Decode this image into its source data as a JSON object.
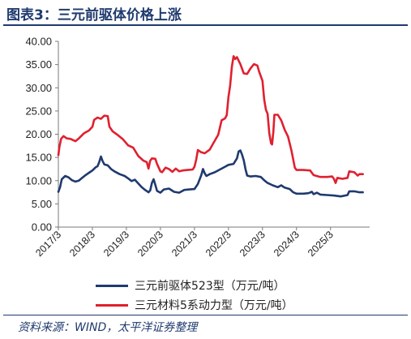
{
  "header": {
    "title": "图表3：三元前驱体价格上涨"
  },
  "source": "资料来源：WIND，太平洋证券整理",
  "colors": {
    "title": "#1f3a6e",
    "series_blue": "#1f3a6e",
    "series_red": "#e0202f",
    "axis": "#7a7a7a"
  },
  "chart_data": {
    "type": "line",
    "title": "",
    "xlabel": "",
    "ylabel": "",
    "ylim": [
      0,
      40
    ],
    "yticks": [
      "0.00",
      "5.00",
      "10.00",
      "15.00",
      "20.00",
      "25.00",
      "30.00",
      "35.00",
      "40.00"
    ],
    "xticks": [
      "2017/3",
      "2018/3",
      "2019/3",
      "2020/3",
      "2021/3",
      "2022/3",
      "2023/3",
      "2024/3",
      "2025/3"
    ],
    "grid": false,
    "legend_position": "bottom",
    "series": [
      {
        "name": "三元前驱体523型（万元/吨）",
        "color": "#1f3a6e",
        "points": [
          [
            2017.0,
            7.6
          ],
          [
            2017.05,
            8.6
          ],
          [
            2017.1,
            10.3
          ],
          [
            2017.2,
            11.0
          ],
          [
            2017.3,
            10.7
          ],
          [
            2017.4,
            10.1
          ],
          [
            2017.5,
            9.8
          ],
          [
            2017.6,
            10.0
          ],
          [
            2017.7,
            10.6
          ],
          [
            2017.8,
            11.2
          ],
          [
            2017.9,
            11.7
          ],
          [
            2018.0,
            12.2
          ],
          [
            2018.1,
            12.9
          ],
          [
            2018.15,
            13.1
          ],
          [
            2018.2,
            14.0
          ],
          [
            2018.25,
            15.2
          ],
          [
            2018.3,
            14.2
          ],
          [
            2018.35,
            13.5
          ],
          [
            2018.45,
            13.3
          ],
          [
            2018.55,
            12.5
          ],
          [
            2018.65,
            12.0
          ],
          [
            2018.8,
            11.4
          ],
          [
            2018.95,
            11.0
          ],
          [
            2019.05,
            10.5
          ],
          [
            2019.15,
            9.9
          ],
          [
            2019.25,
            10.2
          ],
          [
            2019.35,
            9.4
          ],
          [
            2019.45,
            8.6
          ],
          [
            2019.55,
            8.0
          ],
          [
            2019.65,
            7.5
          ],
          [
            2019.7,
            7.9
          ],
          [
            2019.75,
            9.5
          ],
          [
            2019.8,
            10.3
          ],
          [
            2019.85,
            9.1
          ],
          [
            2019.9,
            7.8
          ],
          [
            2020.0,
            7.4
          ],
          [
            2020.1,
            8.1
          ],
          [
            2020.25,
            8.3
          ],
          [
            2020.4,
            7.6
          ],
          [
            2020.55,
            7.4
          ],
          [
            2020.7,
            8.0
          ],
          [
            2020.85,
            8.1
          ],
          [
            2021.0,
            8.2
          ],
          [
            2021.1,
            9.3
          ],
          [
            2021.2,
            11.2
          ],
          [
            2021.25,
            12.5
          ],
          [
            2021.3,
            11.6
          ],
          [
            2021.35,
            11.0
          ],
          [
            2021.45,
            11.4
          ],
          [
            2021.6,
            11.8
          ],
          [
            2021.75,
            12.4
          ],
          [
            2021.9,
            13.0
          ],
          [
            2022.0,
            13.4
          ],
          [
            2022.15,
            13.6
          ],
          [
            2022.25,
            14.8
          ],
          [
            2022.3,
            16.3
          ],
          [
            2022.35,
            16.5
          ],
          [
            2022.4,
            15.6
          ],
          [
            2022.45,
            14.4
          ],
          [
            2022.5,
            12.5
          ],
          [
            2022.55,
            11.1
          ],
          [
            2022.65,
            10.9
          ],
          [
            2022.8,
            11.0
          ],
          [
            2022.95,
            10.8
          ],
          [
            2023.05,
            10.1
          ],
          [
            2023.15,
            9.5
          ],
          [
            2023.3,
            9.0
          ],
          [
            2023.45,
            8.6
          ],
          [
            2023.55,
            9.0
          ],
          [
            2023.65,
            8.5
          ],
          [
            2023.8,
            8.2
          ],
          [
            2023.9,
            7.5
          ],
          [
            2024.0,
            7.2
          ],
          [
            2024.2,
            7.2
          ],
          [
            2024.35,
            7.3
          ],
          [
            2024.45,
            7.6
          ],
          [
            2024.5,
            7.1
          ],
          [
            2024.6,
            7.4
          ],
          [
            2024.7,
            7.0
          ],
          [
            2024.9,
            6.9
          ],
          [
            2025.1,
            6.8
          ],
          [
            2025.3,
            6.6
          ],
          [
            2025.5,
            6.9
          ],
          [
            2025.55,
            7.7
          ],
          [
            2025.7,
            7.7
          ],
          [
            2025.85,
            7.5
          ],
          [
            2025.95,
            7.5
          ]
        ]
      },
      {
        "name": "三元材料5系动力型（万元/吨）",
        "color": "#e0202f",
        "points": [
          [
            2017.0,
            15.5
          ],
          [
            2017.03,
            17.3
          ],
          [
            2017.08,
            19.0
          ],
          [
            2017.15,
            19.6
          ],
          [
            2017.25,
            19.1
          ],
          [
            2017.35,
            19.0
          ],
          [
            2017.5,
            18.5
          ],
          [
            2017.6,
            19.1
          ],
          [
            2017.75,
            20.2
          ],
          [
            2017.9,
            20.8
          ],
          [
            2018.0,
            21.6
          ],
          [
            2018.05,
            23.1
          ],
          [
            2018.15,
            23.6
          ],
          [
            2018.25,
            23.3
          ],
          [
            2018.35,
            24.0
          ],
          [
            2018.45,
            23.9
          ],
          [
            2018.5,
            21.6
          ],
          [
            2018.6,
            20.6
          ],
          [
            2018.75,
            19.8
          ],
          [
            2018.9,
            18.9
          ],
          [
            2019.05,
            17.6
          ],
          [
            2019.2,
            17.1
          ],
          [
            2019.35,
            15.3
          ],
          [
            2019.5,
            14.3
          ],
          [
            2019.6,
            14.0
          ],
          [
            2019.65,
            12.6
          ],
          [
            2019.7,
            14.3
          ],
          [
            2019.75,
            14.8
          ],
          [
            2019.85,
            14.7
          ],
          [
            2019.9,
            13.6
          ],
          [
            2020.0,
            12.0
          ],
          [
            2020.05,
            11.8
          ],
          [
            2020.15,
            12.8
          ],
          [
            2020.25,
            12.5
          ],
          [
            2020.35,
            11.9
          ],
          [
            2020.45,
            12.6
          ],
          [
            2020.55,
            12.0
          ],
          [
            2020.65,
            12.2
          ],
          [
            2020.8,
            12.3
          ],
          [
            2020.95,
            12.4
          ],
          [
            2021.0,
            13.0
          ],
          [
            2021.05,
            14.5
          ],
          [
            2021.1,
            16.6
          ],
          [
            2021.2,
            16.1
          ],
          [
            2021.3,
            15.9
          ],
          [
            2021.45,
            16.7
          ],
          [
            2021.55,
            18.0
          ],
          [
            2021.7,
            19.9
          ],
          [
            2021.8,
            23.0
          ],
          [
            2021.9,
            23.4
          ],
          [
            2021.95,
            24.1
          ],
          [
            2022.0,
            28.0
          ],
          [
            2022.05,
            30.5
          ],
          [
            2022.1,
            34.5
          ],
          [
            2022.15,
            36.8
          ],
          [
            2022.2,
            36.2
          ],
          [
            2022.25,
            36.6
          ],
          [
            2022.35,
            35.1
          ],
          [
            2022.45,
            33.1
          ],
          [
            2022.55,
            33.0
          ],
          [
            2022.65,
            34.2
          ],
          [
            2022.75,
            35.1
          ],
          [
            2022.85,
            34.8
          ],
          [
            2022.9,
            33.5
          ],
          [
            2023.0,
            31.5
          ],
          [
            2023.05,
            27.5
          ],
          [
            2023.1,
            25.3
          ],
          [
            2023.15,
            24.4
          ],
          [
            2023.2,
            20.2
          ],
          [
            2023.25,
            18.1
          ],
          [
            2023.28,
            17.8
          ],
          [
            2023.32,
            20.5
          ],
          [
            2023.35,
            24.2
          ],
          [
            2023.45,
            24.2
          ],
          [
            2023.55,
            23.0
          ],
          [
            2023.65,
            21.0
          ],
          [
            2023.75,
            19.5
          ],
          [
            2023.85,
            16.5
          ],
          [
            2023.95,
            12.8
          ],
          [
            2024.0,
            12.3
          ],
          [
            2024.2,
            12.3
          ],
          [
            2024.4,
            12.2
          ],
          [
            2024.5,
            11.2
          ],
          [
            2024.7,
            10.8
          ],
          [
            2024.9,
            10.8
          ],
          [
            2025.05,
            10.9
          ],
          [
            2025.1,
            10.4
          ],
          [
            2025.15,
            9.5
          ],
          [
            2025.2,
            10.6
          ],
          [
            2025.35,
            10.4
          ],
          [
            2025.5,
            10.6
          ],
          [
            2025.55,
            12.0
          ],
          [
            2025.7,
            11.8
          ],
          [
            2025.8,
            11.1
          ],
          [
            2025.85,
            11.4
          ],
          [
            2025.95,
            11.4
          ]
        ]
      }
    ]
  }
}
